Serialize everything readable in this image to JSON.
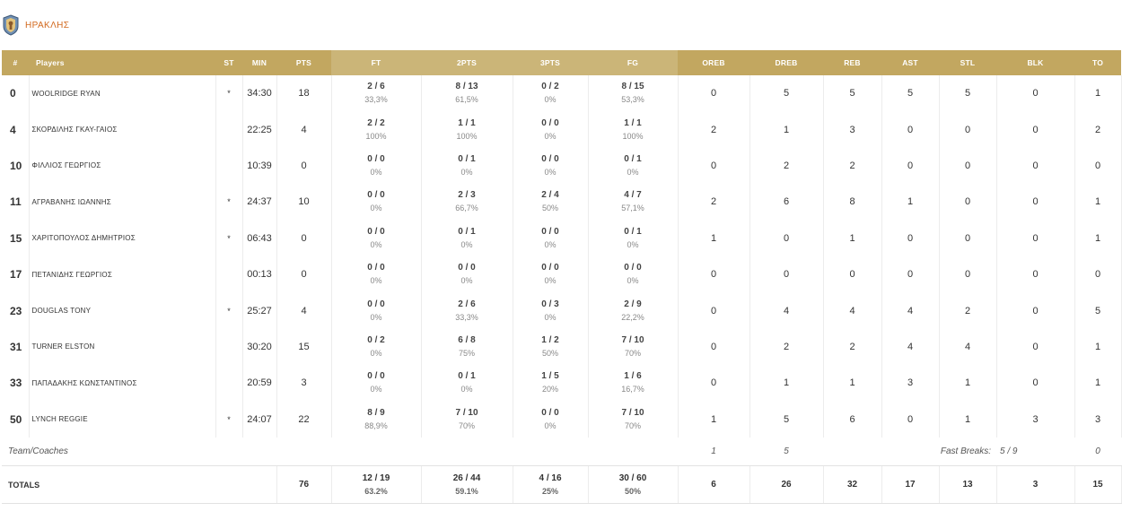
{
  "team": {
    "name": "ΗΡΑΚΛΗΣ",
    "logo_icon": "team-crest-icon"
  },
  "columns": [
    "#",
    "Players",
    "ST",
    "MIN",
    "PTS",
    "FT",
    "2PTS",
    "3PTS",
    "FG",
    "OREB",
    "DREB",
    "REB",
    "AST",
    "STL",
    "BLK",
    "TO"
  ],
  "players": [
    {
      "num": "0",
      "name": "WOOLRIDGE RYAN",
      "st": "*",
      "min": "34:30",
      "pts": "18",
      "ft": "2 / 6",
      "ft_pct": "33,3%",
      "p2": "8 / 13",
      "p2_pct": "61,5%",
      "p3": "0 / 2",
      "p3_pct": "0%",
      "fg": "8 / 15",
      "fg_pct": "53,3%",
      "oreb": "0",
      "dreb": "5",
      "reb": "5",
      "ast": "5",
      "stl": "5",
      "blk": "0",
      "to": "1"
    },
    {
      "num": "4",
      "name": "ΣΚΟΡΔΙΛΗΣ ΓΚΑΥ-ΓΑΙΟΣ",
      "st": "",
      "min": "22:25",
      "pts": "4",
      "ft": "2 / 2",
      "ft_pct": "100%",
      "p2": "1 / 1",
      "p2_pct": "100%",
      "p3": "0 / 0",
      "p3_pct": "0%",
      "fg": "1 / 1",
      "fg_pct": "100%",
      "oreb": "2",
      "dreb": "1",
      "reb": "3",
      "ast": "0",
      "stl": "0",
      "blk": "0",
      "to": "2"
    },
    {
      "num": "10",
      "name": "ΦΙΛΛΙΟΣ ΓΕΩΡΓΙΟΣ",
      "st": "",
      "min": "10:39",
      "pts": "0",
      "ft": "0 / 0",
      "ft_pct": "0%",
      "p2": "0 / 1",
      "p2_pct": "0%",
      "p3": "0 / 0",
      "p3_pct": "0%",
      "fg": "0 / 1",
      "fg_pct": "0%",
      "oreb": "0",
      "dreb": "2",
      "reb": "2",
      "ast": "0",
      "stl": "0",
      "blk": "0",
      "to": "0"
    },
    {
      "num": "11",
      "name": "ΑΓΡΑΒΑΝΗΣ ΙΩΑΝΝΗΣ",
      "st": "*",
      "min": "24:37",
      "pts": "10",
      "ft": "0 / 0",
      "ft_pct": "0%",
      "p2": "2 / 3",
      "p2_pct": "66,7%",
      "p3": "2 / 4",
      "p3_pct": "50%",
      "fg": "4 / 7",
      "fg_pct": "57,1%",
      "oreb": "2",
      "dreb": "6",
      "reb": "8",
      "ast": "1",
      "stl": "0",
      "blk": "0",
      "to": "1"
    },
    {
      "num": "15",
      "name": "ΧΑΡΙΤΟΠΟΥΛΟΣ ΔΗΜΗΤΡΙΟΣ",
      "st": "*",
      "min": "06:43",
      "pts": "0",
      "ft": "0 / 0",
      "ft_pct": "0%",
      "p2": "0 / 1",
      "p2_pct": "0%",
      "p3": "0 / 0",
      "p3_pct": "0%",
      "fg": "0 / 1",
      "fg_pct": "0%",
      "oreb": "1",
      "dreb": "0",
      "reb": "1",
      "ast": "0",
      "stl": "0",
      "blk": "0",
      "to": "1"
    },
    {
      "num": "17",
      "name": "ΠΕΤΑΝΙΔΗΣ ΓΕΩΡΓΙΟΣ",
      "st": "",
      "min": "00:13",
      "pts": "0",
      "ft": "0 / 0",
      "ft_pct": "0%",
      "p2": "0 / 0",
      "p2_pct": "0%",
      "p3": "0 / 0",
      "p3_pct": "0%",
      "fg": "0 / 0",
      "fg_pct": "0%",
      "oreb": "0",
      "dreb": "0",
      "reb": "0",
      "ast": "0",
      "stl": "0",
      "blk": "0",
      "to": "0"
    },
    {
      "num": "23",
      "name": "DOUGLAS TONY",
      "st": "*",
      "min": "25:27",
      "pts": "4",
      "ft": "0 / 0",
      "ft_pct": "0%",
      "p2": "2 / 6",
      "p2_pct": "33,3%",
      "p3": "0 / 3",
      "p3_pct": "0%",
      "fg": "2 / 9",
      "fg_pct": "22,2%",
      "oreb": "0",
      "dreb": "4",
      "reb": "4",
      "ast": "4",
      "stl": "2",
      "blk": "0",
      "to": "5"
    },
    {
      "num": "31",
      "name": "TURNER ELSTON",
      "st": "",
      "min": "30:20",
      "pts": "15",
      "ft": "0 / 2",
      "ft_pct": "0%",
      "p2": "6 / 8",
      "p2_pct": "75%",
      "p3": "1 / 2",
      "p3_pct": "50%",
      "fg": "7 / 10",
      "fg_pct": "70%",
      "oreb": "0",
      "dreb": "2",
      "reb": "2",
      "ast": "4",
      "stl": "4",
      "blk": "0",
      "to": "1"
    },
    {
      "num": "33",
      "name": "ΠΑΠΑΔΑΚΗΣ ΚΩΝΣΤΑΝΤΙΝΟΣ",
      "st": "",
      "min": "20:59",
      "pts": "3",
      "ft": "0 / 0",
      "ft_pct": "0%",
      "p2": "0 / 1",
      "p2_pct": "0%",
      "p3": "1 / 5",
      "p3_pct": "20%",
      "fg": "1 / 6",
      "fg_pct": "16,7%",
      "oreb": "0",
      "dreb": "1",
      "reb": "1",
      "ast": "3",
      "stl": "1",
      "blk": "0",
      "to": "1"
    },
    {
      "num": "50",
      "name": "LYNCH REGGIE",
      "st": "*",
      "min": "24:07",
      "pts": "22",
      "ft": "8 / 9",
      "ft_pct": "88,9%",
      "p2": "7 / 10",
      "p2_pct": "70%",
      "p3": "0 / 0",
      "p3_pct": "0%",
      "fg": "7 / 10",
      "fg_pct": "70%",
      "oreb": "1",
      "dreb": "5",
      "reb": "6",
      "ast": "0",
      "stl": "1",
      "blk": "3",
      "to": "3"
    }
  ],
  "team_row": {
    "label": "Team/Coaches",
    "oreb": "1",
    "dreb": "5",
    "fast_breaks_label": "Fast Breaks:",
    "fast_breaks": "5 / 9",
    "to": "0"
  },
  "totals": {
    "label": "TOTALS",
    "pts": "76",
    "ft": "12 / 19",
    "ft_pct": "63.2%",
    "p2": "26 / 44",
    "p2_pct": "59.1%",
    "p3": "4 / 16",
    "p3_pct": "25%",
    "fg": "30 / 60",
    "fg_pct": "50%",
    "oreb": "6",
    "dreb": "26",
    "reb": "32",
    "ast": "17",
    "stl": "13",
    "blk": "3",
    "to": "15"
  },
  "colors": {
    "header_dark": "#c2a760",
    "header_light": "#cbb578",
    "team_name": "#d2691e"
  }
}
